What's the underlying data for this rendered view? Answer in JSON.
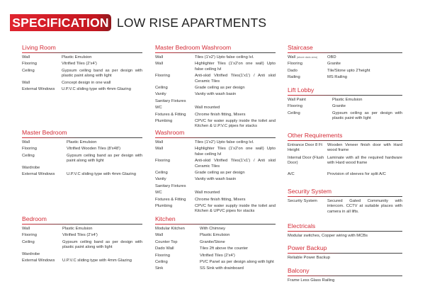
{
  "header": {
    "badge": "SPECIFICATION",
    "title": "LOW RISE APARTMENTS",
    "accent": "#d42b36"
  },
  "sections": [
    {
      "title": "Living Room",
      "rows": [
        [
          "Wall",
          "Plastic Emulsion"
        ],
        [
          "Flooring",
          "Vitrified Tiles (2'x4')"
        ],
        [
          "Ceiling",
          "Gypsum ceiling band as per design with plastic paint along with light"
        ],
        [
          "Wall",
          "Concept design in one wall"
        ],
        [
          "External Windows",
          "U.P.V.C sliding type with 4mm Glazing"
        ]
      ]
    },
    {
      "title": "Master Bedroom",
      "rows": [
        [
          "Wall",
          "Plastic Emulsion"
        ],
        [
          "Flooring",
          "Vitrified Wooden Tiles (8'x48')"
        ],
        [
          "Ceiling",
          "Gypsum ceiling band as per design with paint along with light"
        ],
        [
          "Wardrobe",
          ""
        ],
        [
          "External Windows",
          "U.P.V.C sliding type with 4mm Glazing"
        ]
      ]
    },
    {
      "title": "Bedroom",
      "rows": [
        [
          "Wall",
          "Plastic Emulsion"
        ],
        [
          "Flooring",
          "Vitrified Tiles (2'x4')"
        ],
        [
          "Ceiling",
          "Gypsum ceiling band as per design with plastic paint along with light"
        ],
        [
          "Wardrobe",
          ""
        ],
        [
          "External Windows",
          "U.P.V.C sliding type with 4mm Glazing"
        ]
      ]
    },
    {
      "title": "Master Bedroom Washroom",
      "rows": [
        [
          "Wall",
          "Tiles (1'x2') Upto false ceiling lvl."
        ],
        [
          "Wall",
          "Highlighter Tiles (1'x2'on one wall) Upto false ceiling lvl"
        ],
        [
          "Flooring",
          "Anti-skid Vitrified Tiles(1'x1') / Anti skid Ceramic Tiles"
        ],
        [
          "Ceiling",
          "Grade ceiling as per design"
        ],
        [
          "Vanity",
          "Vanity with wash basin"
        ],
        [
          "Sanitary Fixtures",
          ""
        ],
        [
          "WC",
          "Wall mounted"
        ],
        [
          "Fixtures & Fitting",
          "Chrome finish fitting, Mixers"
        ],
        [
          "Plumbing",
          "CPVC for water supply inside the toilet and Kitchen & U.P.V.C pipes for stacks"
        ]
      ]
    },
    {
      "title": "Washroom",
      "rows": [
        [
          "Wall",
          "Tiles (1'x2') Upto false ceiling lvl."
        ],
        [
          "Wall",
          "Highlighter Tiles (1'x2'on one wall) Upto false ceiling lvl"
        ],
        [
          "Flooring",
          "Anti-skid Vitrified Tiles(1'x1') / Anti skid Ceramic Tiles"
        ],
        [
          "Ceiling",
          "Grade ceiling as per design"
        ],
        [
          "Vanity",
          "Vanity with wash basin"
        ],
        [
          "Sanitary Fixtures",
          ""
        ],
        [
          "WC",
          "Wall mounted"
        ],
        [
          "Fixtures & Fitting",
          "Chrome finish fitting, Mixers"
        ],
        [
          "Plumbing",
          "CPVC for water supply inside the toilet and Kitchen & UPVC pipes for stacks"
        ]
      ]
    },
    {
      "title": "Kitchen",
      "rows": [
        [
          "Modular Kitchen",
          "With Chimney"
        ],
        [
          "Wall",
          "Plastic Emulsion"
        ],
        [
          "Counter Top",
          "Granite/Stone"
        ],
        [
          "Dado Wall",
          "Tiles 2ft above the counter"
        ],
        [
          "Flooring",
          "Vitrified Tiles (2'x4')"
        ],
        [
          "Ceiling",
          "PVC Panel as per design along with light"
        ],
        [
          "Sink",
          "SS Sink with drainboard"
        ]
      ]
    },
    {
      "title": "Staircase",
      "rows": [
        [
          "Wall",
          "OBD",
          "(above dado area)"
        ],
        [
          "Flooring",
          "Granite"
        ],
        [
          "Dado",
          "Tile/Stone upto 2'height"
        ],
        [
          "Railing",
          "MS Railing"
        ]
      ]
    },
    {
      "title": "Lift Lobby",
      "rows": [
        [
          "Wall Paint",
          "Plastic Emulsion"
        ],
        [
          "Flooring",
          "Granite"
        ],
        [
          "Ceiling",
          "Gypsum ceiling as per design with plastic paint with light"
        ]
      ]
    },
    {
      "title": "Other Requirements",
      "rows": [
        [
          "Entrance Door 8 Ft Height",
          "Wooden Veneer finish door with Hard wood frame"
        ],
        [
          "Internal Door (Flush Door)",
          "Laminate with all the required hardware with Hard wood frame"
        ],
        [
          "A/C",
          "Provision of sleeves for split A/C"
        ]
      ]
    },
    {
      "title": "Security System",
      "rows": [
        [
          "Security System",
          "Secured Gated Community with intercom. CCTV at suitable places with camera in all lifts."
        ]
      ]
    },
    {
      "title": "Electricals",
      "text": "Modular switches, Copper wiring with MCBs"
    },
    {
      "title": "Power Backup",
      "text": "Reliable Power Backup"
    },
    {
      "title": "Balcony",
      "text": "Frame Less Glass Railing"
    }
  ]
}
